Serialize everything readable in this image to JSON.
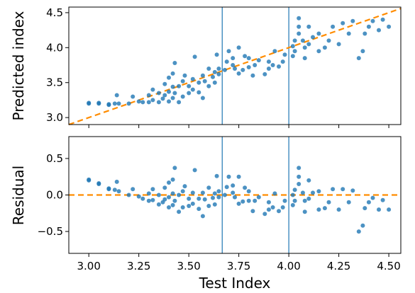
{
  "chart_data": [
    {
      "type": "scatter",
      "panel": "top",
      "xlabel": "",
      "ylabel": "Predicted index",
      "xlim": [
        2.9,
        4.56
      ],
      "ylim": [
        2.9,
        4.58
      ],
      "xticks": [
        3.0,
        3.25,
        3.5,
        3.75,
        4.0,
        4.25,
        4.5
      ],
      "yticks": [
        3.0,
        3.5,
        4.0,
        4.5
      ],
      "ytick_labels": [
        "3.0",
        "3.5",
        "4.0",
        "4.5"
      ],
      "show_xtick_labels": false,
      "grid": false,
      "reference_line": {
        "style": "dashed",
        "color": "#ff8c00",
        "from": [
          2.9,
          2.9
        ],
        "to": [
          4.56,
          4.56
        ]
      },
      "vertical_lines": [
        3.667,
        4.0
      ],
      "vline_color": "#1f77b4",
      "marker_color": "#1f77b4",
      "points": [
        [
          3.0,
          3.2
        ],
        [
          3.0,
          3.21
        ],
        [
          3.05,
          3.2
        ],
        [
          3.05,
          3.21
        ],
        [
          3.1,
          3.18
        ],
        [
          3.1,
          3.19
        ],
        [
          3.13,
          3.2
        ],
        [
          3.15,
          3.2
        ],
        [
          3.14,
          3.32
        ],
        [
          3.2,
          3.2
        ],
        [
          3.22,
          3.3
        ],
        [
          3.25,
          3.23
        ],
        [
          3.27,
          3.22
        ],
        [
          3.3,
          3.22
        ],
        [
          3.3,
          3.32
        ],
        [
          3.32,
          3.25
        ],
        [
          3.32,
          3.4
        ],
        [
          3.35,
          3.22
        ],
        [
          3.35,
          3.35
        ],
        [
          3.37,
          3.27
        ],
        [
          3.38,
          3.32
        ],
        [
          3.38,
          3.48
        ],
        [
          3.4,
          3.23
        ],
        [
          3.4,
          3.37
        ],
        [
          3.4,
          3.57
        ],
        [
          3.42,
          3.28
        ],
        [
          3.42,
          3.44
        ],
        [
          3.42,
          3.63
        ],
        [
          3.43,
          3.78
        ],
        [
          3.43,
          3.35
        ],
        [
          3.45,
          3.22
        ],
        [
          3.45,
          3.45
        ],
        [
          3.47,
          3.3
        ],
        [
          3.47,
          3.52
        ],
        [
          3.48,
          3.6
        ],
        [
          3.5,
          3.35
        ],
        [
          3.5,
          3.45
        ],
        [
          3.52,
          3.4
        ],
        [
          3.52,
          3.55
        ],
        [
          3.53,
          3.87
        ],
        [
          3.55,
          3.36
        ],
        [
          3.55,
          3.5
        ],
        [
          3.57,
          3.28
        ],
        [
          3.57,
          3.6
        ],
        [
          3.58,
          3.52
        ],
        [
          3.6,
          3.45
        ],
        [
          3.6,
          3.7
        ],
        [
          3.62,
          3.58
        ],
        [
          3.63,
          3.5
        ],
        [
          3.63,
          3.65
        ],
        [
          3.64,
          3.9
        ],
        [
          3.65,
          3.62
        ],
        [
          3.65,
          3.7
        ],
        [
          3.68,
          3.68
        ],
        [
          3.69,
          3.8
        ],
        [
          3.7,
          3.95
        ],
        [
          3.72,
          3.75
        ],
        [
          3.72,
          3.85
        ],
        [
          3.73,
          3.7
        ],
        [
          3.75,
          3.63
        ],
        [
          3.75,
          4.0
        ],
        [
          3.77,
          3.68
        ],
        [
          3.78,
          3.88
        ],
        [
          3.8,
          3.72
        ],
        [
          3.8,
          3.85
        ],
        [
          3.82,
          3.6
        ],
        [
          3.83,
          3.75
        ],
        [
          3.85,
          3.82
        ],
        [
          3.88,
          3.62
        ],
        [
          3.9,
          3.7
        ],
        [
          3.9,
          3.8
        ],
        [
          3.92,
          3.75
        ],
        [
          3.93,
          3.95
        ],
        [
          3.95,
          3.73
        ],
        [
          3.97,
          3.8
        ],
        [
          3.98,
          3.9
        ],
        [
          4.02,
          3.88
        ],
        [
          4.02,
          4.02
        ],
        [
          4.03,
          4.1
        ],
        [
          4.03,
          3.95
        ],
        [
          4.05,
          4.2
        ],
        [
          4.05,
          4.3
        ],
        [
          4.05,
          4.42
        ],
        [
          4.07,
          4.1
        ],
        [
          4.08,
          4.0
        ],
        [
          4.08,
          3.85
        ],
        [
          4.1,
          4.3
        ],
        [
          4.1,
          4.05
        ],
        [
          4.12,
          4.15
        ],
        [
          4.15,
          4.2
        ],
        [
          4.15,
          3.95
        ],
        [
          4.18,
          4.0
        ],
        [
          4.2,
          4.1
        ],
        [
          4.22,
          4.3
        ],
        [
          4.25,
          4.05
        ],
        [
          4.27,
          4.35
        ],
        [
          4.3,
          4.2
        ],
        [
          4.32,
          4.38
        ],
        [
          4.35,
          3.85
        ],
        [
          4.37,
          3.95
        ],
        [
          4.38,
          4.2
        ],
        [
          4.4,
          4.3
        ],
        [
          4.42,
          4.38
        ],
        [
          4.45,
          4.25
        ],
        [
          4.47,
          4.4
        ],
        [
          4.5,
          4.3
        ]
      ]
    },
    {
      "type": "scatter",
      "panel": "bottom",
      "xlabel": "Test Index",
      "ylabel": "Residual",
      "xlim": [
        2.9,
        4.56
      ],
      "ylim": [
        -0.8,
        0.8
      ],
      "xticks": [
        3.0,
        3.25,
        3.5,
        3.75,
        4.0,
        4.25,
        4.5
      ],
      "xtick_labels": [
        "3.00",
        "3.25",
        "3.50",
        "3.75",
        "4.00",
        "4.25",
        "4.50"
      ],
      "yticks": [
        -0.5,
        0.0,
        0.5
      ],
      "ytick_labels": [
        "−0.5",
        "0.0",
        "0.5"
      ],
      "grid": false,
      "reference_line": {
        "style": "dashed",
        "color": "#ff8c00",
        "from": [
          2.9,
          0.0
        ],
        "to": [
          4.56,
          0.0
        ]
      },
      "vertical_lines": [
        3.667,
        4.0
      ],
      "vline_color": "#1f77b4",
      "marker_color": "#1f77b4",
      "points": [
        [
          3.0,
          0.2
        ],
        [
          3.0,
          0.21
        ],
        [
          3.05,
          0.15
        ],
        [
          3.05,
          0.16
        ],
        [
          3.1,
          0.08
        ],
        [
          3.1,
          0.09
        ],
        [
          3.13,
          0.07
        ],
        [
          3.15,
          0.05
        ],
        [
          3.14,
          0.18
        ],
        [
          3.2,
          0.0
        ],
        [
          3.22,
          0.08
        ],
        [
          3.25,
          -0.02
        ],
        [
          3.27,
          -0.05
        ],
        [
          3.3,
          -0.08
        ],
        [
          3.3,
          0.02
        ],
        [
          3.32,
          -0.07
        ],
        [
          3.32,
          0.08
        ],
        [
          3.35,
          -0.13
        ],
        [
          3.35,
          0.0
        ],
        [
          3.37,
          -0.1
        ],
        [
          3.38,
          -0.06
        ],
        [
          3.38,
          0.1
        ],
        [
          3.4,
          -0.17
        ],
        [
          3.4,
          -0.03
        ],
        [
          3.4,
          0.17
        ],
        [
          3.42,
          -0.14
        ],
        [
          3.42,
          0.02
        ],
        [
          3.42,
          0.21
        ],
        [
          3.43,
          0.37
        ],
        [
          3.43,
          -0.08
        ],
        [
          3.45,
          -0.23
        ],
        [
          3.45,
          0.0
        ],
        [
          3.47,
          -0.17
        ],
        [
          3.47,
          0.05
        ],
        [
          3.48,
          0.12
        ],
        [
          3.5,
          -0.15
        ],
        [
          3.5,
          -0.05
        ],
        [
          3.52,
          -0.12
        ],
        [
          3.52,
          0.03
        ],
        [
          3.53,
          0.34
        ],
        [
          3.55,
          -0.19
        ],
        [
          3.55,
          -0.05
        ],
        [
          3.57,
          -0.29
        ],
        [
          3.57,
          0.03
        ],
        [
          3.58,
          -0.06
        ],
        [
          3.6,
          -0.15
        ],
        [
          3.6,
          0.1
        ],
        [
          3.62,
          -0.04
        ],
        [
          3.63,
          -0.13
        ],
        [
          3.63,
          0.02
        ],
        [
          3.64,
          0.26
        ],
        [
          3.65,
          -0.03
        ],
        [
          3.65,
          0.05
        ],
        [
          3.68,
          0.0
        ],
        [
          3.69,
          0.11
        ],
        [
          3.7,
          0.25
        ],
        [
          3.72,
          0.03
        ],
        [
          3.72,
          0.13
        ],
        [
          3.73,
          -0.03
        ],
        [
          3.75,
          -0.12
        ],
        [
          3.75,
          0.25
        ],
        [
          3.77,
          -0.09
        ],
        [
          3.78,
          0.1
        ],
        [
          3.8,
          -0.08
        ],
        [
          3.8,
          0.05
        ],
        [
          3.82,
          -0.22
        ],
        [
          3.83,
          -0.08
        ],
        [
          3.85,
          -0.03
        ],
        [
          3.88,
          -0.26
        ],
        [
          3.9,
          -0.2
        ],
        [
          3.9,
          -0.1
        ],
        [
          3.92,
          -0.17
        ],
        [
          3.93,
          0.02
        ],
        [
          3.95,
          -0.22
        ],
        [
          3.97,
          -0.17
        ],
        [
          3.98,
          -0.08
        ],
        [
          4.02,
          -0.14
        ],
        [
          4.02,
          0.0
        ],
        [
          4.03,
          0.07
        ],
        [
          4.03,
          -0.08
        ],
        [
          4.05,
          0.15
        ],
        [
          4.05,
          0.25
        ],
        [
          4.05,
          0.37
        ],
        [
          4.07,
          0.03
        ],
        [
          4.08,
          -0.08
        ],
        [
          4.08,
          -0.23
        ],
        [
          4.1,
          0.2
        ],
        [
          4.1,
          -0.05
        ],
        [
          4.12,
          0.03
        ],
        [
          4.15,
          0.05
        ],
        [
          4.15,
          -0.2
        ],
        [
          4.18,
          -0.18
        ],
        [
          4.2,
          -0.1
        ],
        [
          4.22,
          0.08
        ],
        [
          4.25,
          -0.2
        ],
        [
          4.27,
          0.08
        ],
        [
          4.3,
          -0.1
        ],
        [
          4.32,
          0.06
        ],
        [
          4.35,
          -0.5
        ],
        [
          4.37,
          -0.42
        ],
        [
          4.38,
          -0.18
        ],
        [
          4.4,
          -0.1
        ],
        [
          4.42,
          -0.04
        ],
        [
          4.45,
          -0.2
        ],
        [
          4.47,
          -0.07
        ],
        [
          4.5,
          -0.2
        ]
      ]
    }
  ]
}
